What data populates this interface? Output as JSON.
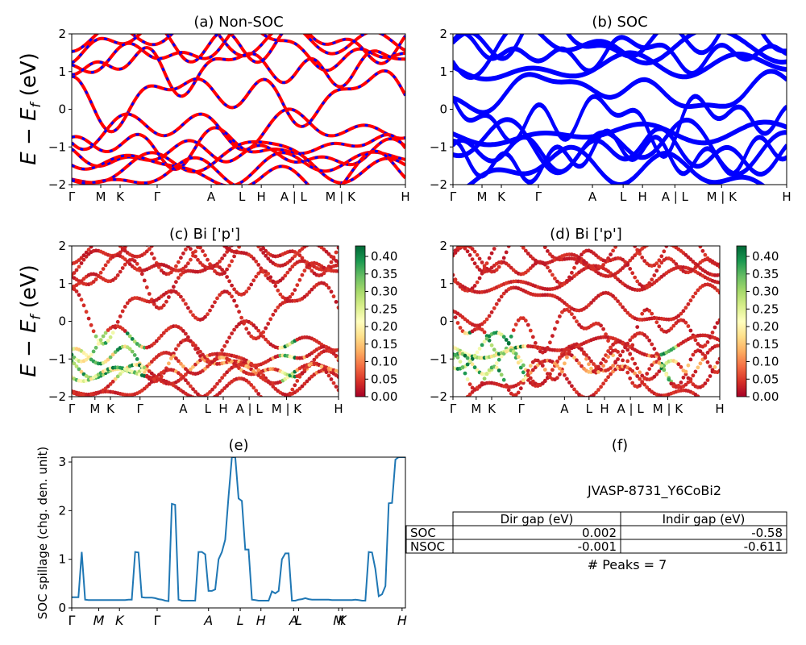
{
  "chart_data": [
    {
      "type": "line",
      "panel": "a",
      "title": "(a) Non-SOC",
      "ylabel": "E − E_f (eV)",
      "ylabel_main": "E − E",
      "ylabel_sub": "f",
      "ylabel_tail": " (eV)",
      "ylim": [
        -2,
        2
      ],
      "yticks": [
        "2",
        "1",
        "0",
        "−1",
        "−2"
      ],
      "xticks": [
        "Γ",
        "M",
        "K",
        "Γ",
        "A",
        "L",
        "H",
        "A | L",
        "M | K",
        "H"
      ],
      "band_colors": [
        "#ff0000",
        "#0000ff"
      ],
      "style": "dashed red/blue bands",
      "bands_at_gamma": [
        1.9,
        1.75,
        1.55,
        1.1,
        0.35,
        -0.5,
        -1.0,
        -1.2,
        -1.4,
        -1.5,
        -1.75
      ]
    },
    {
      "type": "line",
      "panel": "b",
      "title": "(b) SOC",
      "ylim": [
        -2,
        2
      ],
      "yticks": [
        "2",
        "1",
        "0",
        "−1",
        "−2"
      ],
      "xticks": [
        "Γ",
        "M",
        "K",
        "Γ",
        "A",
        "L",
        "H",
        "A | L",
        "M | K",
        "H"
      ],
      "band_colors": [
        "#0000ff"
      ],
      "bands_at_gamma": [
        1.85,
        1.65,
        1.45,
        1.05,
        0.45,
        -0.3,
        -0.75,
        -1.0,
        -1.3,
        -1.45,
        -1.7
      ]
    },
    {
      "type": "scatter",
      "panel": "c",
      "title": "(c)  Bi ['p']",
      "ylabel": "E − E_f (eV)",
      "ylabel_main": "E − E",
      "ylabel_sub": "f",
      "ylabel_tail": " (eV)",
      "ylim": [
        -2,
        2
      ],
      "yticks": [
        "2",
        "1",
        "0",
        "−1",
        "−2"
      ],
      "xticks": [
        "Γ",
        "M",
        "K",
        "Γ",
        "A",
        "L",
        "H",
        "A | L",
        "M | K",
        "H"
      ],
      "colormap": "RdYlGn",
      "colorbar_ticks": [
        "0.40",
        "0.35",
        "0.30",
        "0.25",
        "0.20",
        "0.15",
        "0.10",
        "0.05",
        "0.00"
      ],
      "colorbar_range": [
        0,
        0.43
      ]
    },
    {
      "type": "scatter",
      "panel": "d",
      "title": "(d) Bi ['p']",
      "ylim": [
        -2,
        2
      ],
      "yticks": [
        "2",
        "1",
        "0",
        "−1",
        "−2"
      ],
      "xticks": [
        "Γ",
        "M",
        "K",
        "Γ",
        "A",
        "L",
        "H",
        "A | L",
        "M | K",
        "H"
      ],
      "colormap": "RdYlGn",
      "colorbar_ticks": [
        "0.40",
        "0.35",
        "0.30",
        "0.25",
        "0.20",
        "0.15",
        "0.10",
        "0.05",
        "0.00"
      ],
      "colorbar_range": [
        0,
        0.43
      ]
    },
    {
      "type": "line",
      "panel": "e",
      "title": "(e)",
      "ylabel": "SOC spillage (chg. den. unit)",
      "ylim": [
        0,
        3.1
      ],
      "yticks": [
        "0",
        "1",
        "2",
        "3"
      ],
      "xticks": [
        "Γ",
        "M",
        "K",
        "Γ",
        "A",
        "L",
        "H",
        "A",
        "L",
        "M",
        "K",
        "H"
      ],
      "color": "#1f77b4",
      "x": [
        0,
        2,
        3,
        4,
        5,
        6,
        7,
        8,
        9,
        10,
        11,
        12,
        13,
        14,
        15,
        16,
        17,
        18,
        19,
        20,
        21,
        22,
        23,
        24,
        25,
        26,
        27,
        28,
        29,
        30,
        31,
        32,
        33,
        34,
        35,
        36,
        37,
        38,
        39,
        40,
        41,
        42,
        43,
        44,
        45,
        46,
        47,
        48,
        49,
        50,
        51,
        52,
        53,
        54,
        55,
        56,
        57,
        58,
        59,
        60,
        61,
        62,
        63,
        64,
        65,
        66,
        67,
        68,
        69,
        70,
        71,
        72,
        73,
        74,
        75,
        76,
        77,
        78,
        79,
        80,
        81,
        82,
        83,
        84,
        85,
        86,
        87,
        88,
        89,
        90,
        91,
        92,
        93,
        94,
        95,
        96,
        97,
        98,
        99,
        100
      ],
      "y": [
        0.22,
        0.22,
        1.15,
        0.17,
        0.16,
        0.16,
        0.16,
        0.16,
        0.16,
        0.16,
        0.16,
        0.16,
        0.16,
        0.16,
        0.16,
        0.16,
        0.17,
        0.17,
        1.15,
        1.14,
        0.22,
        0.21,
        0.21,
        0.21,
        0.2,
        0.18,
        0.17,
        0.15,
        0.14,
        2.14,
        2.12,
        0.17,
        0.15,
        0.15,
        0.15,
        0.15,
        0.15,
        1.15,
        1.15,
        1.1,
        0.35,
        0.35,
        0.38,
        1.0,
        1.15,
        1.4,
        2.3,
        3.1,
        3.1,
        2.25,
        2.2,
        1.2,
        1.2,
        0.17,
        0.16,
        0.15,
        0.15,
        0.15,
        0.15,
        0.34,
        0.3,
        0.35,
        1.0,
        1.12,
        1.12,
        0.15,
        0.15,
        0.17,
        0.18,
        0.2,
        0.18,
        0.17,
        0.17,
        0.17,
        0.17,
        0.17,
        0.17,
        0.16,
        0.16,
        0.16,
        0.16,
        0.16,
        0.16,
        0.16,
        0.17,
        0.16,
        0.15,
        0.15,
        1.15,
        1.14,
        0.8,
        0.24,
        0.28,
        0.45,
        2.15,
        2.16,
        3.05,
        3.1,
        3.1,
        3.1
      ]
    },
    {
      "type": "table",
      "panel": "f",
      "title": "(f)",
      "subtitle": "JVASP-8731_Y6CoBi2",
      "columns": [
        "Dir gap (eV)",
        "Indir gap (eV)"
      ],
      "rows": [
        {
          "label": "SOC",
          "values": [
            "0.002",
            "-0.58"
          ]
        },
        {
          "label": "NSOC",
          "values": [
            "-0.001",
            "-0.611"
          ]
        }
      ],
      "footer": "# Peaks = 7"
    }
  ]
}
